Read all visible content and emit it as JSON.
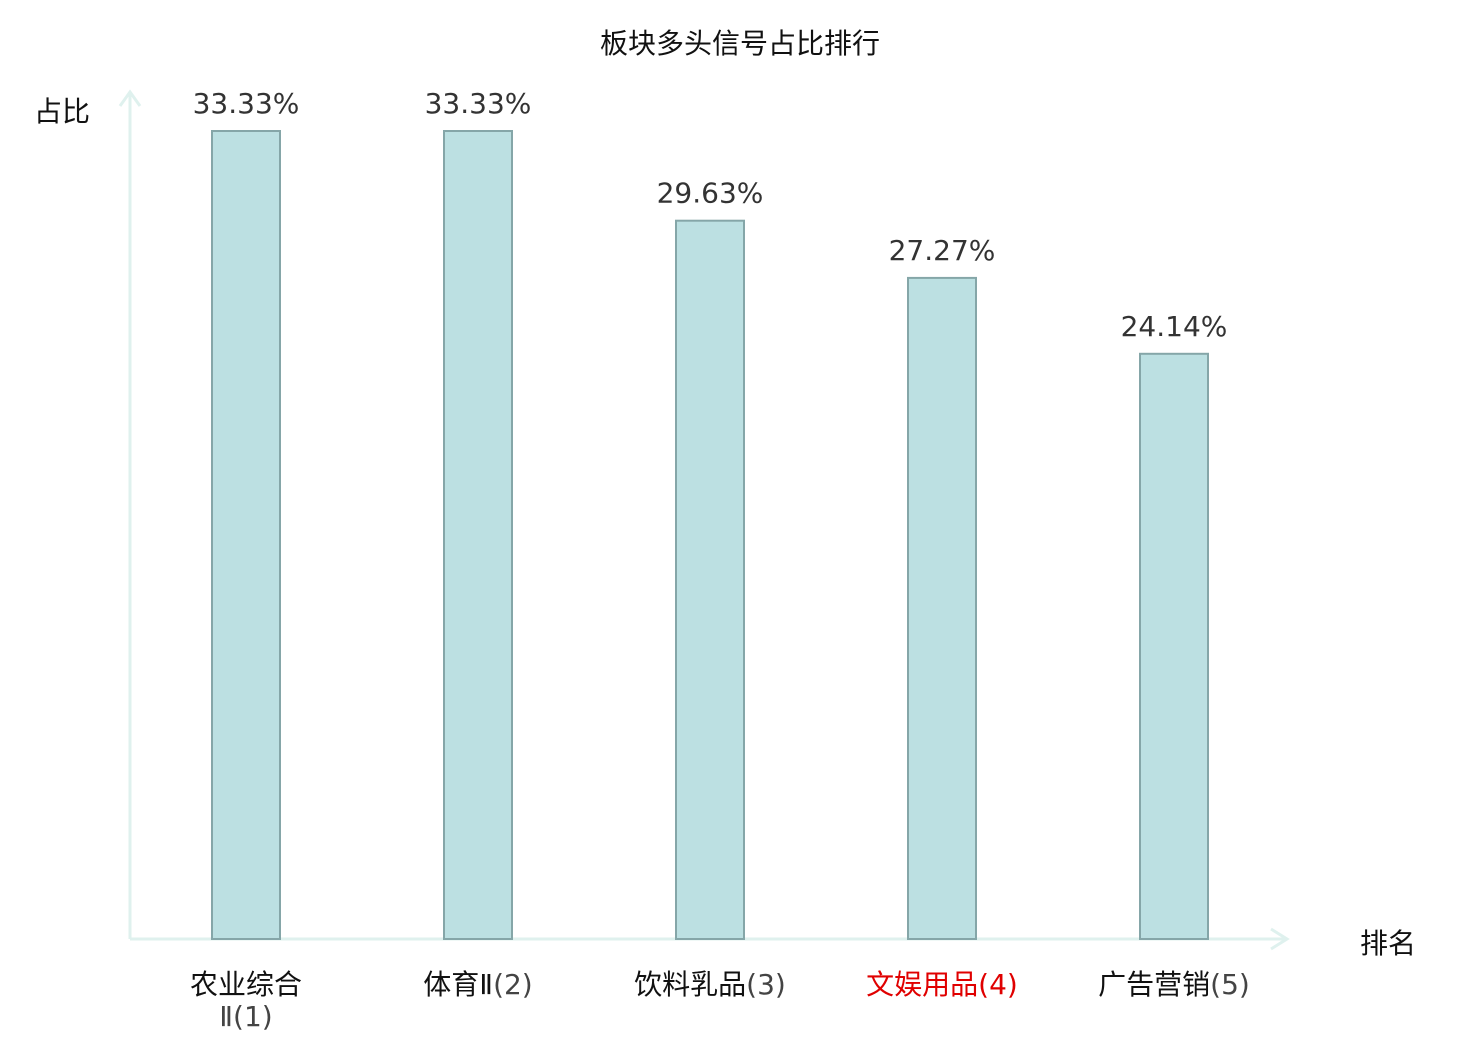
{
  "chart_data": {
    "type": "bar",
    "title": "板块多头信号占比排行",
    "xlabel": "排名",
    "ylabel": "占比",
    "categories": [
      {
        "name": "农业综合Ⅱ",
        "rank": "(1)",
        "highlight": false
      },
      {
        "name": "体育Ⅱ",
        "rank": "(2)",
        "highlight": false
      },
      {
        "name": "饮料乳品",
        "rank": "(3)",
        "highlight": false
      },
      {
        "name": "文娱用品",
        "rank": "(4)",
        "highlight": true
      },
      {
        "name": "广告营销",
        "rank": "(5)",
        "highlight": false
      }
    ],
    "values": [
      33.33,
      33.33,
      29.63,
      27.27,
      24.14
    ],
    "value_labels": [
      "33.33%",
      "33.33%",
      "29.63%",
      "27.27%",
      "24.14%"
    ],
    "ylim": [
      0,
      33.33
    ],
    "grid": false,
    "legend": "none",
    "colors": {
      "bar_fill": "#bce0e2",
      "bar_stroke": "#85a6a8",
      "axis": "#dff1ee",
      "text": "#111111",
      "value_text": "#333333",
      "highlight": "#e00000",
      "rank_text": "#444444"
    }
  }
}
